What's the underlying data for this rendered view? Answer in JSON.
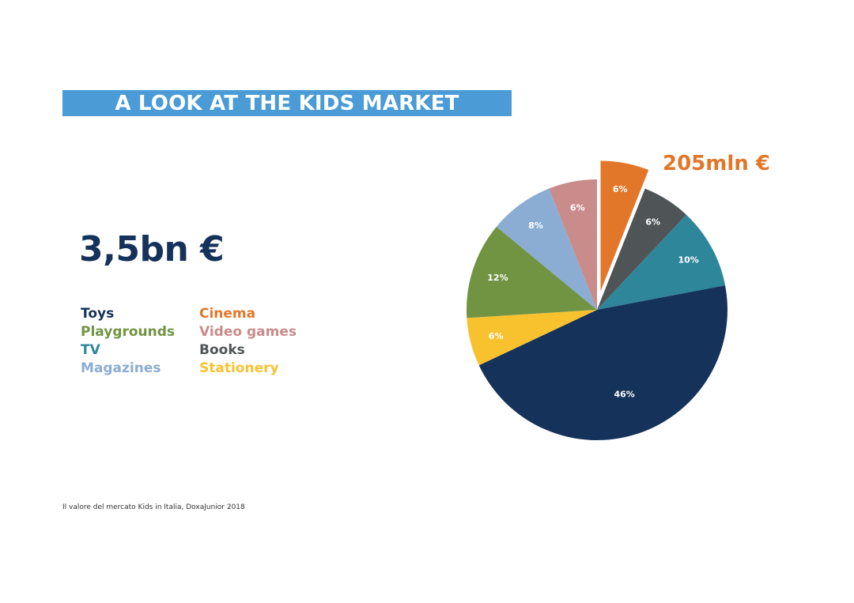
{
  "title": "A LOOK AT THE KIDS MARKET",
  "total": "3,5bn €",
  "callout": "205mln €",
  "source": "Il valore del mercato Kids in Italia, DoxaJunior 2018",
  "legend_columns": [
    [
      "Toys",
      "Playgrounds",
      "TV",
      "Magazines"
    ],
    [
      "Cinema",
      "Video games",
      "Books",
      "Stationery"
    ]
  ],
  "chart_data": {
    "type": "pie",
    "title": "",
    "start_angle_deg": 0,
    "direction": "clockwise",
    "exploded": "Cinema",
    "slices": [
      {
        "name": "Cinema",
        "value": 6,
        "label": "6%",
        "color": "#e2772a"
      },
      {
        "name": "Books",
        "value": 6,
        "label": "6%",
        "color": "#4f5557"
      },
      {
        "name": "TV",
        "value": 10,
        "label": "10%",
        "color": "#2e869b"
      },
      {
        "name": "Toys",
        "value": 46,
        "label": "46%",
        "color": "#14325a"
      },
      {
        "name": "Stationery",
        "value": 6,
        "label": "6%",
        "color": "#f8c22e"
      },
      {
        "name": "Playgrounds",
        "value": 12,
        "label": "12%",
        "color": "#719443"
      },
      {
        "name": "Magazines",
        "value": 8,
        "label": "8%",
        "color": "#8badd4"
      },
      {
        "name": "Video games",
        "value": 6,
        "label": "6%",
        "color": "#c98c8b"
      }
    ]
  }
}
